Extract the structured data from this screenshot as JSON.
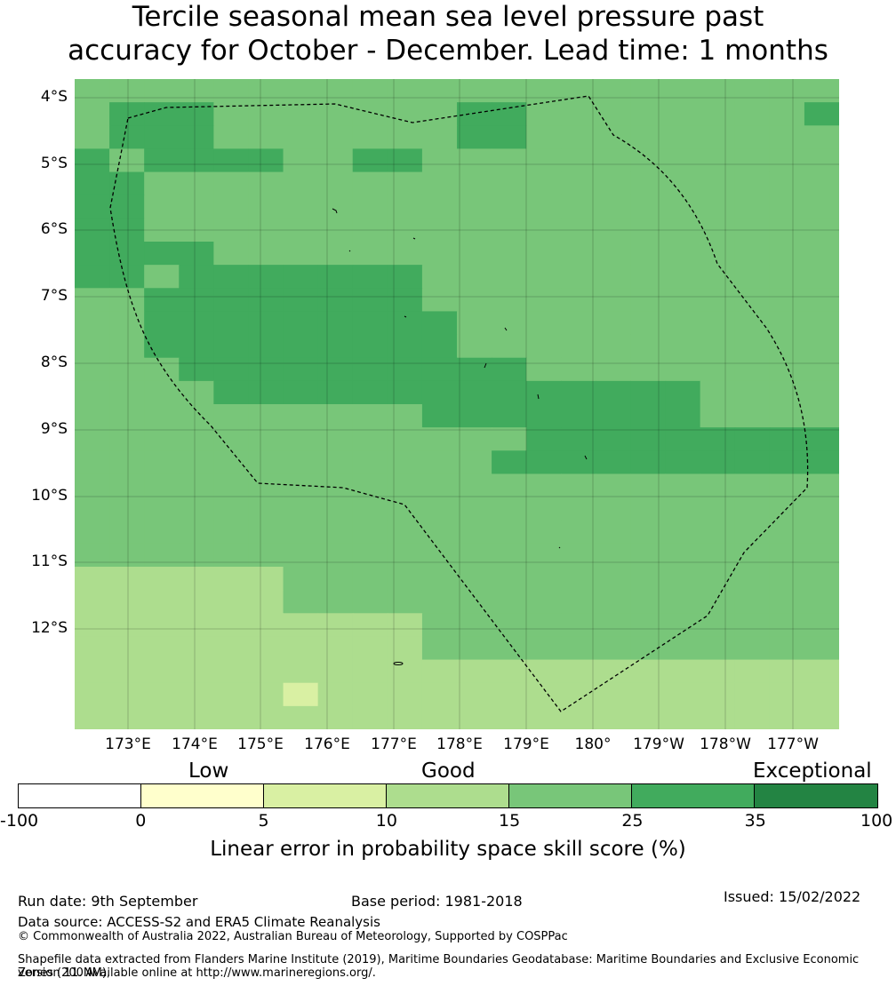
{
  "title": {
    "line1": "Tercile seasonal mean sea level pressure past",
    "line2": "accuracy for October - December. Lead time: 1 months"
  },
  "map": {
    "lat_labels": [
      "4°S",
      "5°S",
      "6°S",
      "7°S",
      "8°S",
      "9°S",
      "10°S",
      "11°S",
      "12°S"
    ],
    "lon_labels": [
      "173°E",
      "174°E",
      "175°E",
      "176°E",
      "177°E",
      "178°E",
      "179°E",
      "180°",
      "179°W",
      "178°W",
      "177°W"
    ],
    "category_colors": {
      "0": "#ffffcc",
      "1": "#d9f0a3",
      "2": "#addd8e",
      "3": "#78c679",
      "4": "#41ab5d",
      "5": "#238443"
    },
    "grid_cells": [
      "3333333333333333333333",
      "3444333333344333333334",
      "3444333333344333333333",
      "4344443344333333333333",
      "4433333333333333333333",
      "4433333333333333333333",
      "4433333333333333333333",
      "4444333333333333333333",
      "4434444444333333333333",
      "3344444444333333333333",
      "3344444444433333333333",
      "3344444444433333333333",
      "3334444444444333333333",
      "3333444444444444443333",
      "3333333333444444443333",
      "3333333333333444444444",
      "3333333333334444444444",
      "3333333333333333333333",
      "3333333333333333333333",
      "3333333333333333333333",
      "3333333333333333333333",
      "2222223333333333333333",
      "2222223333333333333333",
      "2222222222333333333333",
      "2222222222333333333333",
      "2222222222222222222222",
      "2222221222222222222222",
      "2222222222222222222222"
    ]
  },
  "colorbar": {
    "categories": [
      "Low",
      "Good",
      "Exceptional"
    ],
    "ticks": [
      "-100",
      "0",
      "5",
      "10",
      "15",
      "25",
      "35",
      "100"
    ],
    "colors": [
      "#ffffff",
      "#ffffcc",
      "#d9f0a3",
      "#addd8e",
      "#78c679",
      "#41ab5d",
      "#238443"
    ],
    "label": "Linear error in probability space skill score (%)"
  },
  "footer": {
    "run_date": "Run date: 9th September",
    "base_period": "Base period: 1981-2018",
    "issued": "Issued: 15/02/2022",
    "data_source": "Data source: ACCESS-S2 and ERA5 Climate Reanalysis",
    "copyright": "© Commonwealth of Australia 2022, Australian Bureau of Meteorology, Supported by COSPPac",
    "shapefile_line1": "Shapefile data extracted from Flanders Marine Institute (2019), Maritime Boundaries Geodatabase: Maritime Boundaries and Exclusive Economic Zones (200NM),",
    "shapefile_line2": "version 11. Available online at http://www.marineregions.org/."
  }
}
